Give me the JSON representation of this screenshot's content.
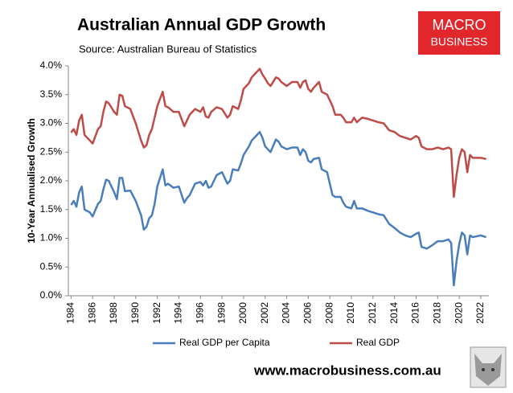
{
  "chart_data": {
    "type": "line",
    "title": "Australian Annual GDP Growth",
    "subtitle": "Source: Australian Bureau of Statistics",
    "y_label": "10-Year Annualised Growth",
    "logo": [
      "MACRO",
      "BUSINESS"
    ],
    "footer": "www.macrobusiness.com.au",
    "x": [
      1984,
      1984.25,
      1984.5,
      1984.75,
      1985,
      1985.25,
      1985.75,
      1986,
      1986.5,
      1986.75,
      1987,
      1987.25,
      1987.5,
      1988,
      1988.25,
      1988.5,
      1988.75,
      1989,
      1989.5,
      1990,
      1990.5,
      1990.75,
      1991,
      1991.25,
      1991.5,
      1991.75,
      1992,
      1992.5,
      1992.75,
      1993,
      1993.5,
      1994,
      1994.5,
      1994.75,
      1995,
      1995.5,
      1996,
      1996.25,
      1996.5,
      1996.75,
      1997,
      1997.5,
      1998,
      1998.5,
      1998.75,
      1999,
      1999.5,
      1999.75,
      2000,
      2000.5,
      2000.75,
      2001,
      2001.5,
      2001.75,
      2002,
      2002.25,
      2002.5,
      2003,
      2003.25,
      2003.5,
      2004,
      2004.5,
      2005,
      2005.25,
      2005.5,
      2005.75,
      2006,
      2006.25,
      2006.5,
      2007,
      2007.25,
      2007.75,
      2008,
      2008.25,
      2008.5,
      2009,
      2009.25,
      2009.5,
      2010,
      2010.25,
      2010.5,
      2011,
      2011.5,
      2012,
      2012.5,
      2013,
      2013.5,
      2014,
      2014.5,
      2015,
      2015.5,
      2016,
      2016.25,
      2016.5,
      2017,
      2017.5,
      2018,
      2018.5,
      2019,
      2019.25,
      2019.5,
      2019.75,
      2020,
      2020.25,
      2020.5,
      2020.75,
      2021,
      2021.25,
      2022,
      2022.5
    ],
    "series": [
      {
        "name": "Real GDP per Capita",
        "color": "#4a7ebb",
        "values": [
          1.58,
          1.65,
          1.55,
          1.8,
          1.9,
          1.5,
          1.45,
          1.38,
          1.6,
          1.65,
          1.85,
          2.02,
          2.0,
          1.8,
          1.68,
          2.05,
          2.05,
          1.82,
          1.83,
          1.65,
          1.4,
          1.15,
          1.2,
          1.35,
          1.4,
          1.6,
          1.9,
          2.2,
          1.92,
          1.95,
          1.88,
          1.9,
          1.62,
          1.7,
          1.75,
          1.95,
          1.98,
          1.92,
          2.0,
          1.88,
          1.9,
          2.1,
          2.15,
          1.95,
          2.0,
          2.2,
          2.18,
          2.3,
          2.45,
          2.6,
          2.7,
          2.75,
          2.85,
          2.75,
          2.6,
          2.55,
          2.5,
          2.72,
          2.68,
          2.6,
          2.55,
          2.58,
          2.58,
          2.45,
          2.55,
          2.5,
          2.35,
          2.32,
          2.38,
          2.4,
          2.2,
          2.15,
          1.95,
          1.75,
          1.72,
          1.72,
          1.62,
          1.55,
          1.52,
          1.65,
          1.52,
          1.52,
          1.48,
          1.45,
          1.42,
          1.4,
          1.25,
          1.18,
          1.1,
          1.05,
          1.02,
          1.08,
          1.1,
          0.85,
          0.82,
          0.88,
          0.95,
          0.95,
          0.98,
          0.92,
          0.18,
          0.6,
          0.9,
          1.1,
          1.05,
          0.72,
          1.05,
          1.02,
          1.05,
          1.02
        ]
      },
      {
        "name": "Real GDP",
        "color": "#be4b48",
        "values": [
          2.84,
          2.9,
          2.8,
          3.05,
          3.15,
          2.8,
          2.7,
          2.65,
          2.9,
          2.95,
          3.2,
          3.38,
          3.35,
          3.2,
          3.15,
          3.5,
          3.48,
          3.3,
          3.25,
          3.0,
          2.7,
          2.58,
          2.62,
          2.8,
          2.9,
          3.1,
          3.3,
          3.55,
          3.3,
          3.28,
          3.2,
          3.2,
          2.95,
          3.05,
          3.15,
          3.25,
          3.2,
          3.28,
          3.12,
          3.1,
          3.2,
          3.28,
          3.25,
          3.1,
          3.15,
          3.3,
          3.25,
          3.4,
          3.6,
          3.7,
          3.8,
          3.85,
          3.95,
          3.85,
          3.78,
          3.7,
          3.65,
          3.8,
          3.78,
          3.72,
          3.65,
          3.72,
          3.72,
          3.62,
          3.72,
          3.75,
          3.6,
          3.55,
          3.62,
          3.72,
          3.55,
          3.5,
          3.4,
          3.3,
          3.15,
          3.15,
          3.1,
          3.02,
          3.02,
          3.1,
          3.02,
          3.1,
          3.08,
          3.05,
          3.02,
          3.0,
          2.88,
          2.85,
          2.78,
          2.75,
          2.72,
          2.78,
          2.75,
          2.6,
          2.55,
          2.55,
          2.58,
          2.55,
          2.58,
          2.55,
          1.72,
          2.1,
          2.4,
          2.55,
          2.5,
          2.15,
          2.45,
          2.4,
          2.4,
          2.38
        ]
      }
    ],
    "xlim": [
      1983.75,
      2022.75
    ],
    "xticks": [
      1984,
      1986,
      1988,
      1990,
      1992,
      1994,
      1996,
      1998,
      2000,
      2002,
      2004,
      2006,
      2008,
      2010,
      2012,
      2014,
      2016,
      2018,
      2020,
      2022
    ],
    "ylim": [
      0,
      4
    ],
    "yticks": [
      {
        "value": 0,
        "label": "0.0%"
      },
      {
        "value": 0.5,
        "label": "0.5%"
      },
      {
        "value": 1,
        "label": "1.0%"
      },
      {
        "value": 1.5,
        "label": "1.5%"
      },
      {
        "value": 2,
        "label": "2.0%"
      },
      {
        "value": 2.5,
        "label": "2.5%"
      },
      {
        "value": 3,
        "label": "3.0%"
      },
      {
        "value": 3.5,
        "label": "3.5%"
      },
      {
        "value": 4,
        "label": "4.0%"
      }
    ],
    "grid": false,
    "legend": "bottom"
  }
}
